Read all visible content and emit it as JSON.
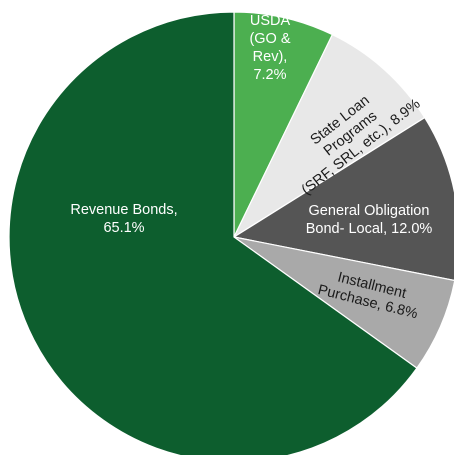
{
  "chart_data": {
    "type": "pie",
    "title": "",
    "slices": [
      {
        "label_lines": [
          "USDA",
          "(GO &",
          "Rev),",
          "7.2%"
        ],
        "category": "USDA (GO & Rev)",
        "value": 7.2,
        "color": "#4caf50",
        "text_color": "#ffffff"
      },
      {
        "label_lines": [
          "State Loan",
          "Programs",
          "(SRF, SRL, etc.), 8.9%"
        ],
        "category": "State Loan Programs (SRF, SRL, etc.)",
        "value": 8.9,
        "color": "#e8e8e8",
        "text_color": "#1a1a1a"
      },
      {
        "label_lines": [
          "General Obligation",
          "Bond- Local, 12.0%"
        ],
        "category": "General Obligation Bond- Local",
        "value": 12.0,
        "color": "#555555",
        "text_color": "#ffffff"
      },
      {
        "label_lines": [
          "Installment",
          "Purchase, 6.8%"
        ],
        "category": "Installment Purchase",
        "value": 6.8,
        "color": "#a9a9a9",
        "text_color": "#1a1a1a"
      },
      {
        "label_lines": [
          "Revenue Bonds,",
          "65.1%"
        ],
        "category": "Revenue Bonds",
        "value": 65.1,
        "color": "#0d5e2e",
        "text_color": "#ffffff"
      }
    ]
  }
}
